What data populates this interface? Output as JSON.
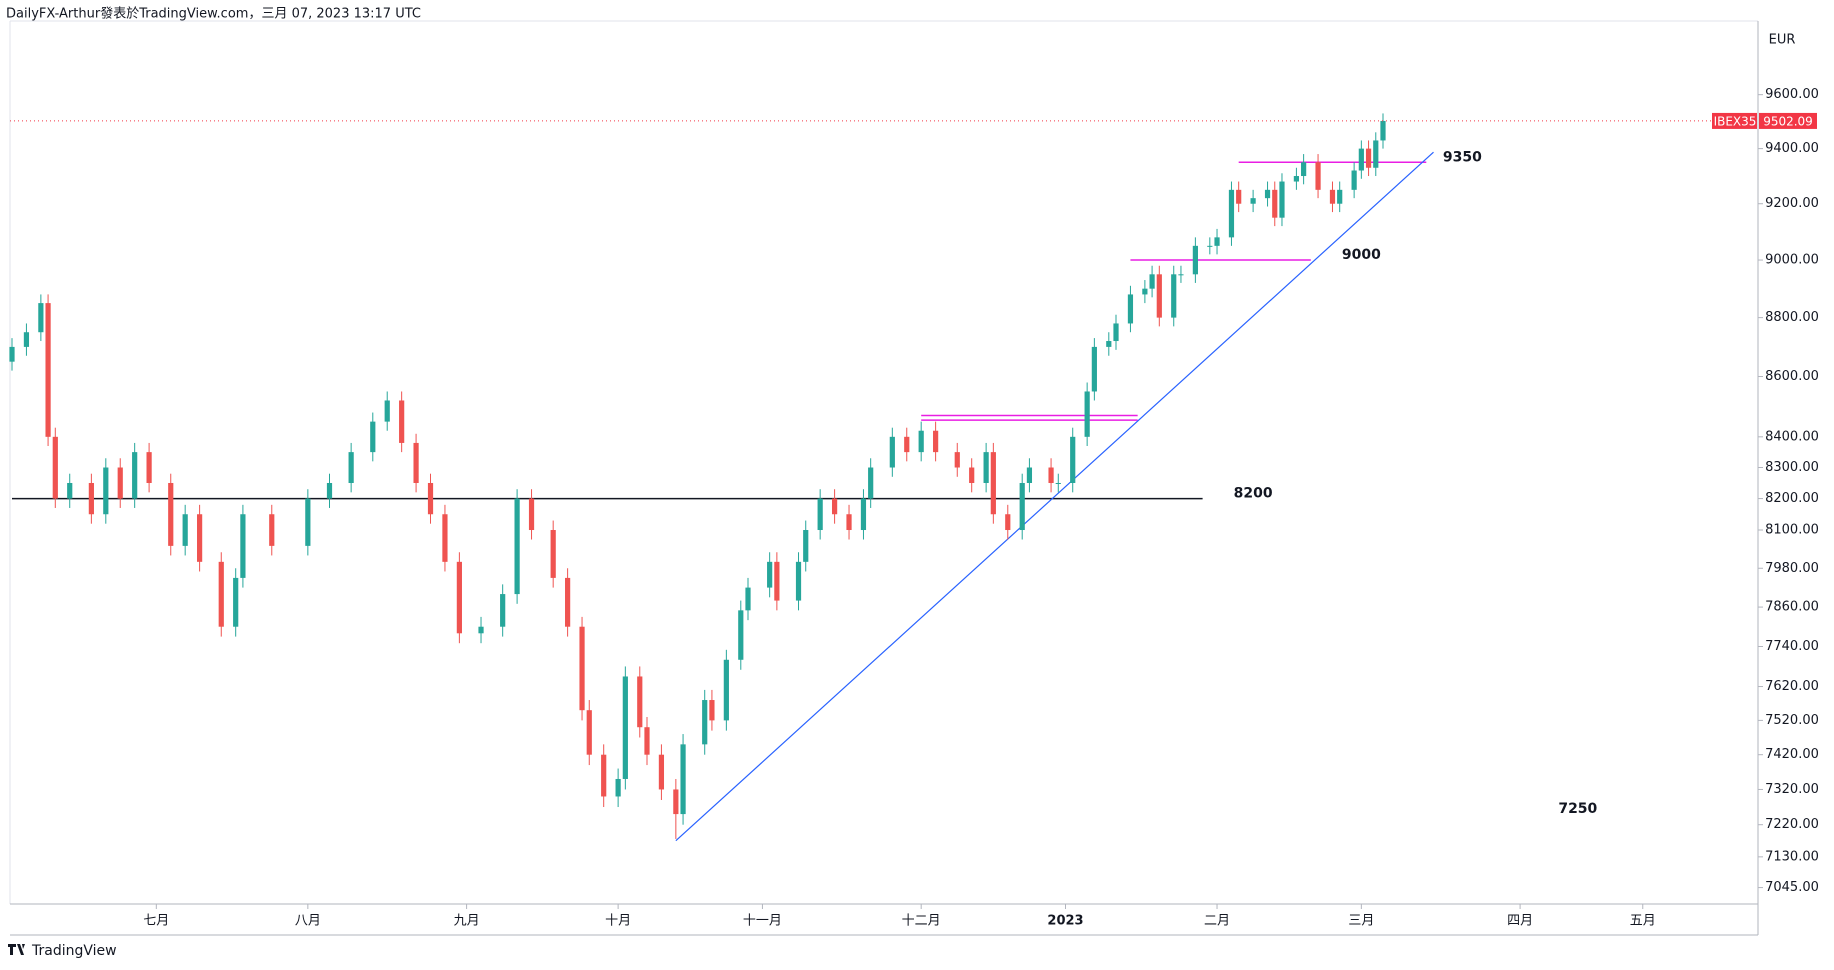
{
  "header": "DailyFX-Arthur發表於TradingView.com，三月 07, 2023 13:17 UTC",
  "footer": "TradingView",
  "chart_data": {
    "type": "candlestick",
    "currency": "EUR",
    "symbol": "IBEX35",
    "log_scale": true,
    "up_color": "#26a69a",
    "down_color": "#ef5350",
    "ylim": [
      7000,
      9880
    ],
    "xlim": [
      0,
      242
    ],
    "yticks": [
      {
        "value": 9600,
        "label": "9600.00"
      },
      {
        "value": 9400,
        "label": "9400.00"
      },
      {
        "value": 9200,
        "label": "9200.00"
      },
      {
        "value": 9000,
        "label": "9000.00"
      },
      {
        "value": 8800,
        "label": "8800.00"
      },
      {
        "value": 8600,
        "label": "8600.00"
      },
      {
        "value": 8400,
        "label": "8400.00"
      },
      {
        "value": 8300,
        "label": "8300.00"
      },
      {
        "value": 8200,
        "label": "8200.00"
      },
      {
        "value": 8100,
        "label": "8100.00"
      },
      {
        "value": 7980,
        "label": "7980.00"
      },
      {
        "value": 7860,
        "label": "7860.00"
      },
      {
        "value": 7740,
        "label": "7740.00"
      },
      {
        "value": 7620,
        "label": "7620.00"
      },
      {
        "value": 7520,
        "label": "7520.00"
      },
      {
        "value": 7420,
        "label": "7420.00"
      },
      {
        "value": 7320,
        "label": "7320.00"
      },
      {
        "value": 7220,
        "label": "7220.00"
      },
      {
        "value": 7130,
        "label": "7130.00"
      },
      {
        "value": 7045,
        "label": "7045.00"
      }
    ],
    "xticks": [
      {
        "value": 20,
        "label": "七月"
      },
      {
        "value": 41,
        "label": "八月"
      },
      {
        "value": 63,
        "label": "九月"
      },
      {
        "value": 84,
        "label": "十月"
      },
      {
        "value": 104,
        "label": "十一月"
      },
      {
        "value": 126,
        "label": "十二月"
      },
      {
        "value": 146,
        "label": "2023"
      },
      {
        "value": 167,
        "label": "二月"
      },
      {
        "value": 187,
        "label": "三月"
      },
      {
        "value": 209,
        "label": "四月"
      },
      {
        "value": 226,
        "label": "五月"
      }
    ],
    "x": [
      0,
      2,
      4,
      5,
      6,
      8,
      11,
      13,
      15,
      17,
      19,
      22,
      24,
      26,
      29,
      31,
      32,
      36,
      41,
      44,
      47,
      50,
      52,
      54,
      56,
      58,
      60,
      62,
      65,
      68,
      70,
      72,
      75,
      77,
      79,
      80,
      82,
      84,
      85,
      87,
      88,
      90,
      92,
      93,
      96,
      97,
      99,
      101,
      102,
      105,
      106,
      109,
      110,
      112,
      114,
      116,
      118,
      119,
      122,
      124,
      126,
      128,
      131,
      133,
      135,
      136,
      138,
      140,
      141,
      144,
      145,
      147,
      149,
      150,
      152,
      153,
      155,
      157,
      158,
      159,
      161,
      162,
      164,
      166,
      167,
      169,
      170,
      172,
      174,
      175,
      176,
      178,
      179,
      181,
      183,
      184,
      186,
      187,
      188,
      189,
      190
    ],
    "ohlc": [
      [
        8650,
        8730,
        8620,
        8700
      ],
      [
        8700,
        8780,
        8670,
        8750
      ],
      [
        8750,
        8880,
        8720,
        8850
      ],
      [
        8850,
        8880,
        8370,
        8400
      ],
      [
        8400,
        8430,
        8170,
        8200
      ],
      [
        8200,
        8280,
        8170,
        8250
      ],
      [
        8250,
        8280,
        8120,
        8150
      ],
      [
        8150,
        8330,
        8120,
        8300
      ],
      [
        8300,
        8330,
        8170,
        8200
      ],
      [
        8200,
        8380,
        8170,
        8350
      ],
      [
        8350,
        8380,
        8220,
        8250
      ],
      [
        8250,
        8280,
        8020,
        8050
      ],
      [
        8050,
        8180,
        8020,
        8150
      ],
      [
        8150,
        8180,
        7970,
        8000
      ],
      [
        8000,
        8030,
        7770,
        7800
      ],
      [
        7800,
        7980,
        7770,
        7950
      ],
      [
        7950,
        8180,
        7920,
        8150
      ],
      [
        8150,
        8180,
        8020,
        8050
      ],
      [
        8050,
        8230,
        8020,
        8200
      ],
      [
        8200,
        8280,
        8170,
        8250
      ],
      [
        8250,
        8380,
        8220,
        8350
      ],
      [
        8350,
        8480,
        8320,
        8450
      ],
      [
        8450,
        8550,
        8420,
        8520
      ],
      [
        8520,
        8550,
        8350,
        8380
      ],
      [
        8380,
        8410,
        8220,
        8250
      ],
      [
        8250,
        8280,
        8120,
        8150
      ],
      [
        8150,
        8180,
        7970,
        8000
      ],
      [
        8000,
        8030,
        7750,
        7780
      ],
      [
        7780,
        7830,
        7750,
        7800
      ],
      [
        7800,
        7930,
        7770,
        7900
      ],
      [
        7900,
        8230,
        7870,
        8200
      ],
      [
        8200,
        8230,
        8070,
        8100
      ],
      [
        8100,
        8130,
        7920,
        7950
      ],
      [
        7950,
        7980,
        7770,
        7800
      ],
      [
        7800,
        7830,
        7520,
        7550
      ],
      [
        7550,
        7580,
        7390,
        7420
      ],
      [
        7420,
        7450,
        7270,
        7300
      ],
      [
        7300,
        7380,
        7270,
        7350
      ],
      [
        7350,
        7680,
        7320,
        7650
      ],
      [
        7650,
        7680,
        7470,
        7500
      ],
      [
        7500,
        7530,
        7390,
        7420
      ],
      [
        7420,
        7450,
        7290,
        7320
      ],
      [
        7320,
        7350,
        7180,
        7250
      ],
      [
        7250,
        7480,
        7220,
        7450
      ],
      [
        7450,
        7610,
        7420,
        7580
      ],
      [
        7580,
        7610,
        7490,
        7520
      ],
      [
        7520,
        7730,
        7490,
        7700
      ],
      [
        7700,
        7880,
        7670,
        7850
      ],
      [
        7850,
        7950,
        7820,
        7920
      ],
      [
        7920,
        8030,
        7890,
        8000
      ],
      [
        8000,
        8030,
        7850,
        7880
      ],
      [
        7880,
        8030,
        7850,
        8000
      ],
      [
        8000,
        8130,
        7970,
        8100
      ],
      [
        8100,
        8230,
        8070,
        8200
      ],
      [
        8200,
        8230,
        8120,
        8150
      ],
      [
        8150,
        8180,
        8070,
        8100
      ],
      [
        8100,
        8230,
        8070,
        8200
      ],
      [
        8200,
        8330,
        8170,
        8300
      ],
      [
        8300,
        8430,
        8270,
        8400
      ],
      [
        8400,
        8430,
        8320,
        8350
      ],
      [
        8350,
        8450,
        8320,
        8420
      ],
      [
        8420,
        8450,
        8320,
        8350
      ],
      [
        8350,
        8380,
        8270,
        8300
      ],
      [
        8300,
        8330,
        8220,
        8250
      ],
      [
        8250,
        8380,
        8220,
        8350
      ],
      [
        8350,
        8380,
        8120,
        8150
      ],
      [
        8150,
        8180,
        8070,
        8100
      ],
      [
        8100,
        8280,
        8070,
        8250
      ],
      [
        8250,
        8330,
        8220,
        8300
      ],
      [
        8300,
        8330,
        8220,
        8250
      ],
      [
        8250,
        8280,
        8220,
        8250
      ],
      [
        8250,
        8430,
        8220,
        8400
      ],
      [
        8400,
        8580,
        8370,
        8550
      ],
      [
        8550,
        8730,
        8520,
        8700
      ],
      [
        8700,
        8750,
        8670,
        8720
      ],
      [
        8720,
        8810,
        8690,
        8780
      ],
      [
        8780,
        8910,
        8750,
        8880
      ],
      [
        8880,
        8930,
        8850,
        8900
      ],
      [
        8900,
        8980,
        8870,
        8950
      ],
      [
        8950,
        8980,
        8770,
        8800
      ],
      [
        8800,
        8980,
        8770,
        8950
      ],
      [
        8950,
        8980,
        8920,
        8950
      ],
      [
        8950,
        9080,
        8920,
        9050
      ],
      [
        9050,
        9080,
        9020,
        9050
      ],
      [
        9050,
        9110,
        9020,
        9080
      ],
      [
        9080,
        9280,
        9050,
        9250
      ],
      [
        9250,
        9280,
        9170,
        9200
      ],
      [
        9200,
        9250,
        9170,
        9220
      ],
      [
        9220,
        9280,
        9190,
        9250
      ],
      [
        9250,
        9280,
        9120,
        9150
      ],
      [
        9150,
        9310,
        9120,
        9280
      ],
      [
        9280,
        9330,
        9250,
        9300
      ],
      [
        9300,
        9380,
        9270,
        9350
      ],
      [
        9350,
        9380,
        9220,
        9250
      ],
      [
        9250,
        9280,
        9170,
        9200
      ],
      [
        9200,
        9280,
        9170,
        9250
      ],
      [
        9250,
        9350,
        9220,
        9320
      ],
      [
        9320,
        9430,
        9290,
        9400
      ],
      [
        9400,
        9430,
        9300,
        9330
      ],
      [
        9330,
        9460,
        9300,
        9430
      ],
      [
        9430,
        9530,
        9400,
        9502.09
      ]
    ],
    "levels": [
      {
        "value": 8200,
        "x": [
          0,
          165
        ],
        "color": "#131722"
      },
      {
        "value": 9350,
        "x": [
          170,
          196
        ],
        "color": "#e91ee3"
      },
      {
        "value": 9000,
        "x": [
          155,
          180
        ],
        "color": "#e91ee3"
      },
      {
        "value": 8470,
        "x": [
          126,
          156
        ],
        "color": "#e91ee3"
      },
      {
        "value": 8455,
        "x": [
          126,
          156
        ],
        "color": "#e91ee3"
      }
    ],
    "annotations": [
      {
        "value": 8200,
        "x": 172
      },
      {
        "value": 9350,
        "x": 201
      },
      {
        "value": 9000,
        "x": 187
      },
      {
        "value": 7250,
        "x": 217
      }
    ],
    "trendline": {
      "x": [
        92,
        197
      ],
      "y": [
        7175,
        9387
      ],
      "color": "#2962ff"
    },
    "last_color": "#f23645"
  }
}
